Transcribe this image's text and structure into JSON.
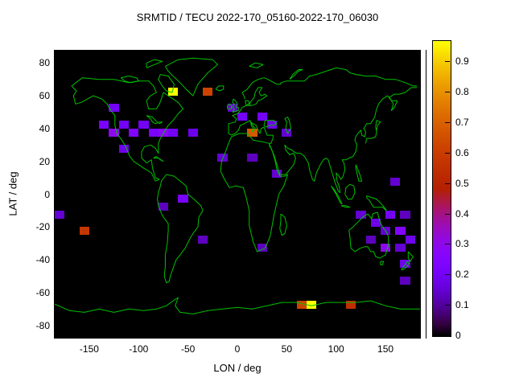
{
  "title": "SRMTID / TECU 2022-170_05160-2022-170_06030",
  "axes": {
    "x_label": "LON / deg",
    "y_label": "LAT / deg",
    "x_ticks": [
      -150,
      -100,
      -50,
      0,
      50,
      100,
      150
    ],
    "y_ticks": [
      80,
      60,
      40,
      20,
      0,
      -20,
      -40,
      -60,
      -80
    ]
  },
  "colorbar": {
    "min": 0,
    "max": 0.97,
    "ticks": [
      {
        "value": 0.0,
        "label": "0"
      },
      {
        "value": 0.1,
        "label": "0.1"
      },
      {
        "value": 0.2,
        "label": "0.2"
      },
      {
        "value": 0.3,
        "label": "0.3"
      },
      {
        "value": 0.4,
        "label": "0.4"
      },
      {
        "value": 0.5,
        "label": "0.5"
      },
      {
        "value": 0.6,
        "label": "0.6"
      },
      {
        "value": 0.7,
        "label": "0.7"
      },
      {
        "value": 0.8,
        "label": "0.8"
      },
      {
        "value": 0.9,
        "label": "0.9"
      }
    ],
    "palette": "gnuplot default pm3d (black - violet - magenta - red - orange - yellow)",
    "color_low": "#7402f5",
    "color_mid": "#c02e00",
    "color_high": "#ffff00"
  },
  "colors": {
    "page_background": "#ffffff",
    "plot_background": "#000000",
    "coastline": "#00c000",
    "text": "#000000"
  },
  "chart_data": {
    "type": "heatmap",
    "title": "SRMTID / TECU 2022-170_05160-2022-170_06030",
    "xlabel": "LON / deg",
    "ylabel": "LAT / deg",
    "lon_range": [
      -185,
      185
    ],
    "lat_range": [
      -87.5,
      87.5
    ],
    "cell_size_deg": {
      "lon": 10,
      "lat": 5
    },
    "cb_min": 0,
    "cb_max": 0.97,
    "cells": [
      {
        "lon": -65,
        "lat": 62.5,
        "value": 0.97
      },
      {
        "lon": -30,
        "lat": 62.5,
        "value": 0.62
      },
      {
        "lon": -125,
        "lat": 52.5,
        "value": 0.2
      },
      {
        "lon": -135,
        "lat": 42.5,
        "value": 0.22
      },
      {
        "lon": -125,
        "lat": 37.5,
        "value": 0.3
      },
      {
        "lon": -115,
        "lat": 42.5,
        "value": 0.2
      },
      {
        "lon": -105,
        "lat": 37.5,
        "value": 0.25
      },
      {
        "lon": -95,
        "lat": 42.5,
        "value": 0.2
      },
      {
        "lon": -115,
        "lat": 27.5,
        "value": 0.18
      },
      {
        "lon": -85,
        "lat": 37.5,
        "value": 0.22
      },
      {
        "lon": -75,
        "lat": 37.5,
        "value": 0.28
      },
      {
        "lon": -65,
        "lat": 37.5,
        "value": 0.2
      },
      {
        "lon": -45,
        "lat": 37.5,
        "value": 0.18
      },
      {
        "lon": -15,
        "lat": 22.5,
        "value": 0.15
      },
      {
        "lon": -5,
        "lat": 52.5,
        "value": 0.15
      },
      {
        "lon": 5,
        "lat": 47.5,
        "value": 0.2
      },
      {
        "lon": 15,
        "lat": 37.5,
        "value": 0.68
      },
      {
        "lon": 25,
        "lat": 47.5,
        "value": 0.2
      },
      {
        "lon": 35,
        "lat": 42.5,
        "value": 0.18
      },
      {
        "lon": 50,
        "lat": 37.5,
        "value": 0.15
      },
      {
        "lon": 15,
        "lat": 22.5,
        "value": 0.13
      },
      {
        "lon": 40,
        "lat": 12.5,
        "value": 0.15
      },
      {
        "lon": -55,
        "lat": -2.5,
        "value": 0.22
      },
      {
        "lon": -75,
        "lat": -7.5,
        "value": 0.13
      },
      {
        "lon": -180,
        "lat": -12.5,
        "value": 0.15
      },
      {
        "lon": -155,
        "lat": -22.5,
        "value": 0.58
      },
      {
        "lon": -35,
        "lat": -27.5,
        "value": 0.13
      },
      {
        "lon": 25,
        "lat": -32.5,
        "value": 0.13
      },
      {
        "lon": 160,
        "lat": 7.5,
        "value": 0.15
      },
      {
        "lon": 125,
        "lat": -12.5,
        "value": 0.15
      },
      {
        "lon": 155,
        "lat": -12.5,
        "value": 0.2
      },
      {
        "lon": 170,
        "lat": -12.5,
        "value": 0.13
      },
      {
        "lon": 140,
        "lat": -17.5,
        "value": 0.18
      },
      {
        "lon": 150,
        "lat": -22.5,
        "value": 0.15
      },
      {
        "lon": 165,
        "lat": -22.5,
        "value": 0.25
      },
      {
        "lon": 135,
        "lat": -27.5,
        "value": 0.13
      },
      {
        "lon": 175,
        "lat": -27.5,
        "value": 0.18
      },
      {
        "lon": 150,
        "lat": -32.5,
        "value": 0.3
      },
      {
        "lon": 165,
        "lat": -32.5,
        "value": 0.15
      },
      {
        "lon": 170,
        "lat": -42.5,
        "value": 0.18
      },
      {
        "lon": 170,
        "lat": -52.5,
        "value": 0.13
      },
      {
        "lon": 65,
        "lat": -67.5,
        "value": 0.62
      },
      {
        "lon": 75,
        "lat": -67.5,
        "value": 0.97
      },
      {
        "lon": 115,
        "lat": -67.5,
        "value": 0.55
      }
    ]
  }
}
